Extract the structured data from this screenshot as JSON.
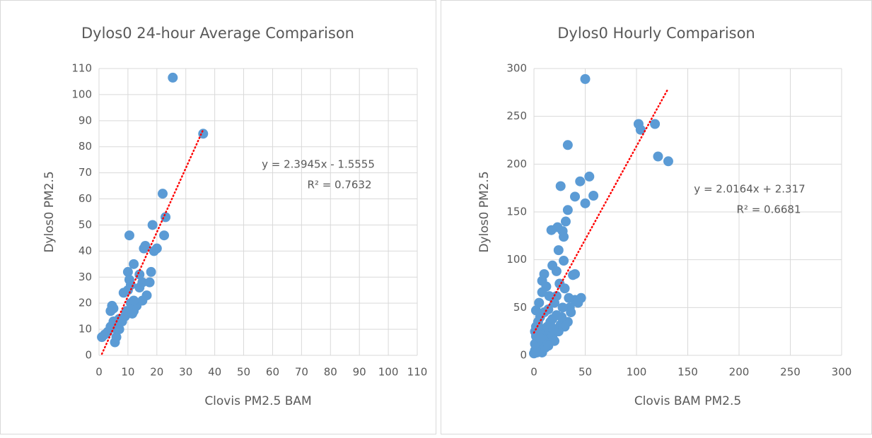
{
  "chart_data": [
    {
      "type": "scatter",
      "title": "Dylos0 24-hour Average Comparison",
      "x_label": "Clovis PM2.5 BAM",
      "y_label": "Dylos0 PM2.5",
      "color": "#5b9bd5",
      "grid": true,
      "x": [
        1,
        2,
        3,
        4,
        4.5,
        5,
        5,
        5.5,
        6,
        6,
        6.5,
        7,
        7,
        8,
        8.5,
        9,
        9.5,
        10,
        10,
        10.5,
        10.5,
        11,
        11,
        11.5,
        12,
        12,
        13,
        14,
        15,
        15,
        15.5,
        16,
        16.5,
        17.5,
        18,
        18.5,
        19,
        20,
        22,
        22.5,
        23,
        25.5,
        36,
        4,
        12,
        14
      ],
      "values": [
        7,
        8,
        9,
        11,
        19,
        18,
        13,
        5,
        7,
        10,
        12,
        10,
        14,
        13,
        24,
        15,
        17,
        25,
        32,
        46,
        29,
        20,
        27,
        16,
        35,
        17,
        19,
        31,
        28,
        21,
        41,
        42,
        23,
        28,
        32,
        50,
        40,
        41,
        62,
        46,
        53,
        106.5,
        85,
        17,
        21,
        26
      ],
      "xlim": [
        0,
        110
      ],
      "xticks": [
        0,
        10,
        20,
        30,
        40,
        50,
        60,
        70,
        80,
        90,
        100,
        110
      ],
      "ylim": [
        0,
        110
      ],
      "yticks": [
        0,
        10,
        20,
        30,
        40,
        50,
        60,
        70,
        80,
        90,
        100,
        110
      ],
      "annotations": [
        "y = 2.3945x - 1.5555",
        "R² = 0.7632"
      ]
    },
    {
      "type": "scatter",
      "title": "Dylos0 Hourly Comparison",
      "x_label": "Clovis BAM PM2.5",
      "y_label": "Dylos0 PM2.5",
      "color": "#5b9bd5",
      "grid": true,
      "x": [
        50,
        102,
        104,
        118,
        121,
        131,
        33,
        26,
        45,
        54,
        58,
        40,
        50,
        33,
        31,
        23,
        17,
        28,
        29,
        24,
        18,
        29,
        10,
        8,
        22,
        40,
        38,
        46,
        40,
        35,
        2,
        5,
        8,
        12,
        15,
        20,
        25,
        30,
        34,
        6,
        10,
        14,
        18,
        22,
        26,
        30,
        33,
        1,
        2,
        3,
        4,
        5,
        6,
        8,
        1,
        0,
        2,
        4,
        7,
        10,
        12,
        15,
        18,
        20,
        24,
        27,
        16,
        9,
        11,
        13,
        3,
        1,
        6,
        14,
        19,
        22,
        28,
        36,
        43
      ],
      "values": [
        289,
        242,
        236,
        242,
        208,
        203,
        220,
        177,
        182,
        187,
        167,
        166,
        159,
        152,
        140,
        134,
        131,
        130,
        124,
        110,
        94,
        99,
        85,
        78,
        88,
        85,
        84,
        60,
        58,
        50,
        47,
        55,
        66,
        72,
        62,
        55,
        75,
        70,
        60,
        40,
        45,
        48,
        38,
        42,
        32,
        30,
        35,
        25,
        20,
        15,
        10,
        8,
        5,
        3,
        5,
        2,
        30,
        35,
        28,
        22,
        18,
        25,
        20,
        15,
        25,
        40,
        35,
        12,
        8,
        30,
        3,
        12,
        18,
        10,
        28,
        62,
        50,
        45,
        55
      ],
      "xlim": [
        0,
        300
      ],
      "xticks": [
        0,
        50,
        100,
        150,
        200,
        250,
        300
      ],
      "ylim": [
        0,
        300
      ],
      "yticks": [
        0,
        50,
        100,
        150,
        200,
        250,
        300
      ],
      "annotations": [
        "y = 2.0164x + 2.317",
        "R² = 0.6681"
      ]
    }
  ]
}
